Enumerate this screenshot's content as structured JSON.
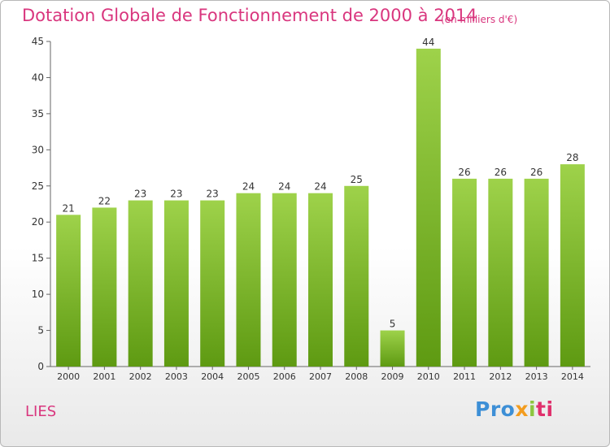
{
  "header": {
    "title": "Dotation Globale de Fonctionnement de 2000 à 2014",
    "subtitle": "(en milliers d'€)"
  },
  "footer": {
    "city": "LIES",
    "logo_parts": [
      "Pro",
      "x",
      "i",
      "ti"
    ]
  },
  "colors": {
    "accent": "#d9367e",
    "bar_top": "#9ed24a",
    "bar_bottom": "#5e9a12"
  },
  "chart_data": {
    "type": "bar",
    "categories": [
      "2000",
      "2001",
      "2002",
      "2003",
      "2004",
      "2005",
      "2006",
      "2007",
      "2008",
      "2009",
      "2010",
      "2011",
      "2012",
      "2013",
      "2014"
    ],
    "values": [
      21,
      22,
      23,
      23,
      23,
      24,
      24,
      24,
      25,
      5,
      44,
      26,
      26,
      26,
      28
    ],
    "title": "Dotation Globale de Fonctionnement de 2000 à 2014",
    "subtitle": "(en milliers d'€)",
    "ylim": [
      0,
      45
    ],
    "yticks": [
      0,
      5,
      10,
      15,
      20,
      25,
      30,
      35,
      40,
      45
    ],
    "grid": false,
    "data_labels": true
  }
}
